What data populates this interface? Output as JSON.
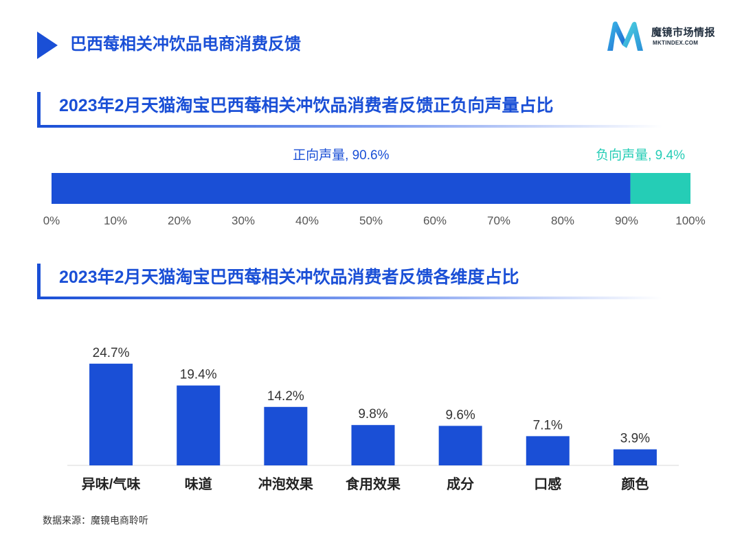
{
  "page": {
    "title": "巴西莓相关冲饮品电商消费反馈",
    "brand_name": "魔镜市场情报",
    "brand_url": "MKTINDEX.COM",
    "source": "数据来源：魔镜电商聆听",
    "colors": {
      "primary": "#1a4fd6",
      "positive": "#1a4fd6",
      "negative": "#25cdb6",
      "text": "#222222"
    }
  },
  "sections": {
    "sentiment_title": "2023年2月天猫淘宝巴西莓相关冲饮品消费者反馈正负向声量占比",
    "dimension_title": "2023年2月天猫淘宝巴西莓相关冲饮品消费者反馈各维度占比"
  },
  "chart_data": [
    {
      "type": "bar",
      "orientation": "horizontal-stacked",
      "title": "2023年2月天猫淘宝巴西莓相关冲饮品消费者反馈正负向声量占比",
      "series": [
        {
          "name": "正向声量",
          "value": 90.6,
          "label": "正向声量, 90.6%",
          "color": "#1a4fd6"
        },
        {
          "name": "负向声量",
          "value": 9.4,
          "label": "负向声量, 9.4%",
          "color": "#25cdb6"
        }
      ],
      "xlim": [
        0,
        100
      ],
      "ticks": [
        "0%",
        "10%",
        "20%",
        "30%",
        "40%",
        "50%",
        "60%",
        "70%",
        "80%",
        "90%",
        "100%"
      ],
      "grid": false
    },
    {
      "type": "bar",
      "title": "2023年2月天猫淘宝巴西莓相关冲饮品消费者反馈各维度占比",
      "categories": [
        "异味/气味",
        "味道",
        "冲泡效果",
        "食用效果",
        "成分",
        "口感",
        "颜色"
      ],
      "values": [
        24.7,
        19.4,
        14.2,
        9.8,
        9.6,
        7.1,
        3.9
      ],
      "value_labels": [
        "24.7%",
        "19.4%",
        "14.2%",
        "9.8%",
        "9.6%",
        "7.1%",
        "3.9%"
      ],
      "color": "#1a4fd6",
      "ylim": [
        0,
        25
      ],
      "grid": false
    }
  ]
}
